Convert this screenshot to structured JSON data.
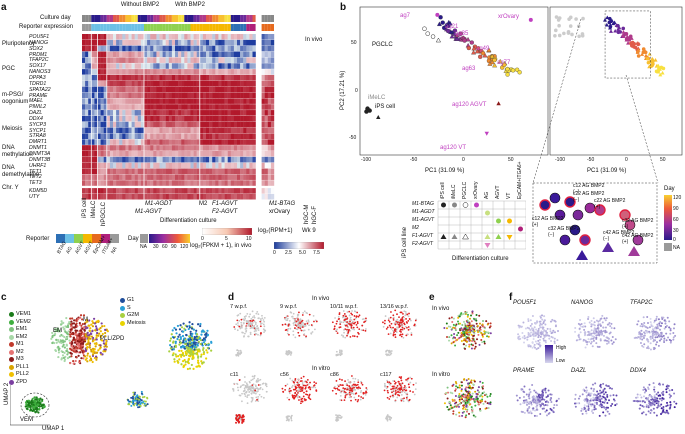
{
  "panels": {
    "a": "a",
    "b": "b",
    "c": "c",
    "d": "d",
    "e": "e",
    "f": "f"
  },
  "heatmap": {
    "row_headers": [
      "Culture day",
      "Reporter expression"
    ],
    "categories": [
      "Pluripotency",
      "PGC",
      "m-PSG/\noogonium",
      "Meiosis",
      "DNA\nmethylation",
      "DNA\ndemethylation",
      "Chr. Y"
    ],
    "genes": [
      "POU5F1",
      "NANOG",
      "SOX2",
      "PRDM1",
      "TFAP2C",
      "SOX17",
      "NANOS3",
      "DPPA3",
      "TDRD1",
      "SPATA22",
      "PRAME",
      "MAEL",
      "PIWIL2",
      "DAZL",
      "DDX4",
      "SYCP3",
      "SYCP1",
      "STRA8",
      "DMRT1",
      "DNMT1",
      "DNMT3A",
      "DNMT3B",
      "UHRF1",
      "TET1",
      "TET2",
      "TET3",
      "KDM5D",
      "UTY"
    ],
    "col_groups_top": [
      "Without BMP2",
      "With BMP2"
    ],
    "in_vivo": "In vivo",
    "bottom_cols": [
      "iPS cell",
      "iMeLC",
      "hPGCLC"
    ],
    "culture_groups": [
      "M1-AGDT",
      "M1-AGVT",
      "M2",
      "F1-AGVT",
      "F2-AGVT",
      "M1-BTAG",
      "xrOvary"
    ],
    "differentiation_culture": "Differentiation culture",
    "hgc": [
      "hGC-M",
      "hGC-F"
    ],
    "wk": "Wk 9",
    "reporter_label": "Reporter",
    "reporter_items": [
      "BTAG",
      "AG",
      "AGVT",
      "AGVT",
      "EpCAM+",
      "ITGA6+",
      "NA"
    ],
    "day_label": "Day",
    "day_ticks": [
      "NA",
      "30",
      "60",
      "90",
      "120"
    ],
    "rpm_label": "log₂(RPM+1)",
    "rpm_ticks": [
      "0",
      "5",
      "10"
    ],
    "fpkm_label": "log₂(FPKM + 1), in vivo",
    "fpkm_ticks": [
      "0",
      "2.5",
      "5.0",
      "7.5"
    ]
  },
  "pca": {
    "xlabel": "PC1 (31.09 %)",
    "ylabel": "PC2 (17.21 %)",
    "xticks": [
      "-100",
      "-50",
      "0",
      "50"
    ],
    "yticks": [
      "50",
      "0",
      "-50"
    ],
    "labels": [
      "PGCLC",
      "iMeLC",
      "iPS cell",
      "xrOvary",
      "ag120 AGVT",
      "ag120 VT",
      "ag7",
      "ag21",
      "ag35",
      "ag49",
      "ag63",
      "ag77"
    ],
    "legend_rows": [
      "M1-BTAG",
      "M1-AGDT",
      "M1-AGVT",
      "M2",
      "F1-AGVT",
      "F2-AGVT"
    ],
    "legend_cols": [
      "iPS cell",
      "iMeLC",
      "PGCLC",
      "xrOvary",
      "AG",
      "AGVT",
      "VT",
      "EpCAM+ITGA6+"
    ],
    "legend_side": "iPS cell line",
    "legend_bottom": "Differentiation culture",
    "zoom_xticks": [
      "-100",
      "-50",
      "0",
      "50"
    ],
    "zoom_labels": [
      "c12 AG BMP2 (−)",
      "c22 AG BMP2 (−)",
      "c22 AG BMP2 (+)",
      "c12 AG BMP2 (+)",
      "c32 AG BMP2 (−)",
      "c32 AG BMP2 (+)",
      "c42 AG BMP2 (−)",
      "c42 AG BMP2 (+)"
    ],
    "day_legend_title": "Day",
    "day_legend_ticks": [
      "120",
      "90",
      "60",
      "30",
      "0",
      "NA"
    ]
  },
  "umap_c": {
    "legend": [
      "VEM1",
      "VEM2",
      "EM1",
      "EM2",
      "M1",
      "M2",
      "M3",
      "PLL1",
      "PLL2",
      "ZPD"
    ],
    "colors": [
      "#1a7a1a",
      "#3fae3f",
      "#7fc27f",
      "#a8d8a8",
      "#c0392b",
      "#e57373",
      "#8b1a1a",
      "#d9a400",
      "#f0c000",
      "#7b3fa0"
    ],
    "labels": [
      "EM",
      "M",
      "PLL/ZPD",
      "VEM"
    ],
    "xlabel": "UMAP 1",
    "ylabel": "UMAP 2",
    "phase_legend": [
      "G1",
      "S",
      "G2M",
      "Meiosis"
    ],
    "phase_colors": [
      "#1f4e9c",
      "#29a0d8",
      "#a8d040",
      "#e8d300"
    ]
  },
  "umap_d": {
    "in_vivo": "In vivo",
    "in_vitro": "In vitro",
    "vivo_titles": [
      "7 w.p.f.",
      "9 w.p.f.",
      "10/11 w.p.f.",
      "13/16 w.p.f."
    ],
    "vitro_titles": [
      "c11",
      "c56",
      "c86",
      "c117"
    ]
  },
  "umap_e": {
    "in_vivo": "In vivo",
    "in_vitro": "In vitro"
  },
  "umap_f": {
    "genes": [
      "POU5F1",
      "NANOG",
      "TFAP2C",
      "PRAME",
      "DAZL",
      "DDX4"
    ],
    "high": "High",
    "low": "Low"
  }
}
